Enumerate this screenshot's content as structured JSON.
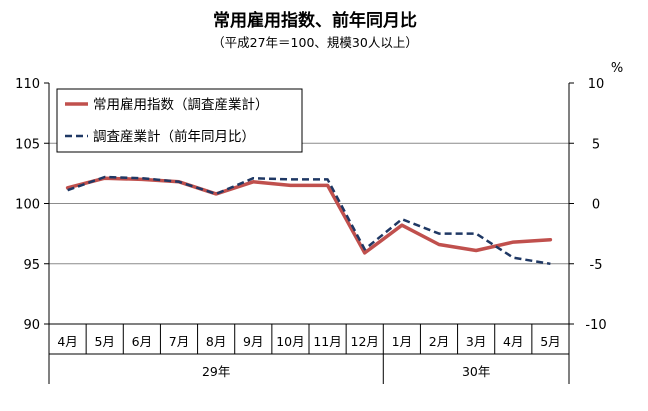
{
  "chart_data": {
    "type": "line",
    "title": "常用雇用指数、前年同月比",
    "subtitle": "（平成27年＝100、規模30人以上）",
    "categories": [
      "4月",
      "5月",
      "6月",
      "7月",
      "8月",
      "9月",
      "10月",
      "11月",
      "12月",
      "1月",
      "2月",
      "3月",
      "4月",
      "5月"
    ],
    "year_groups": [
      {
        "label": "29年",
        "from": 0,
        "to": 8
      },
      {
        "label": "30年",
        "from": 9,
        "to": 13
      }
    ],
    "y_left": {
      "min": 90,
      "max": 110,
      "ticks": [
        90,
        95,
        100,
        105,
        110
      ]
    },
    "y_right": {
      "min": -10,
      "max": 10,
      "ticks": [
        -10,
        -5,
        0,
        5,
        10
      ],
      "unit": "%"
    },
    "grid": true,
    "legend_position": "top-left",
    "series": [
      {
        "name": "常用雇用指数（調査産業計）",
        "axis": "left",
        "style": "solid",
        "color": "#c0504d",
        "values": [
          101.3,
          102.1,
          102.0,
          101.8,
          100.8,
          101.8,
          101.5,
          101.5,
          95.9,
          98.2,
          96.6,
          96.1,
          96.8,
          97.0
        ]
      },
      {
        "name": "調査産業計（前年同月比）",
        "axis": "right",
        "style": "dashed",
        "color": "#1f3864",
        "values": [
          1.1,
          2.2,
          2.1,
          1.8,
          0.8,
          2.1,
          2.0,
          2.0,
          -3.8,
          -1.3,
          -2.5,
          -2.5,
          -4.5,
          -5.0
        ]
      }
    ]
  }
}
